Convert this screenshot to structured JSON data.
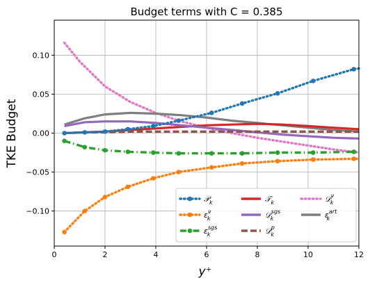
{
  "chart_data": {
    "type": "line",
    "title": "Budget terms with C = 0.385",
    "xlabel": "y⁺",
    "ylabel": "TKE Budget",
    "xlim": [
      0,
      12
    ],
    "ylim": [
      -0.145,
      0.145
    ],
    "xticks": [
      0,
      2,
      4,
      6,
      8,
      10,
      12
    ],
    "yticks": [
      -0.1,
      -0.05,
      0.0,
      0.05,
      0.1
    ],
    "grid": true,
    "legend_placement": "lower-right",
    "series": [
      {
        "name": "P_k",
        "base": "𝒫",
        "sub": "k",
        "sup": "",
        "color": "#1f77b4",
        "style": "dotted",
        "marker": true,
        "x": [
          0.4,
          1.2,
          2.0,
          2.9,
          3.9,
          4.9,
          6.2,
          7.4,
          8.8,
          10.2,
          11.8,
          12.0
        ],
        "y": [
          0.0,
          0.001,
          0.002,
          0.005,
          0.009,
          0.016,
          0.026,
          0.038,
          0.051,
          0.067,
          0.082,
          0.083
        ]
      },
      {
        "name": "eps_k^nu",
        "base": "ε",
        "sub": "k",
        "sup": "ν",
        "color": "#ff7f0e",
        "style": "dotted",
        "marker": true,
        "x": [
          0.4,
          1.2,
          2.0,
          2.9,
          3.9,
          4.9,
          6.2,
          7.4,
          8.8,
          10.2,
          11.8,
          12.0
        ],
        "y": [
          -0.127,
          -0.1,
          -0.082,
          -0.069,
          -0.058,
          -0.05,
          -0.044,
          -0.039,
          -0.036,
          -0.034,
          -0.033,
          -0.033
        ]
      },
      {
        "name": "eps_k^sgs",
        "base": "ε",
        "sub": "k",
        "sup": "sgs",
        "color": "#2ca02c",
        "style": "dashdot",
        "marker": true,
        "x": [
          0.4,
          1.2,
          2.0,
          2.9,
          3.9,
          4.9,
          6.2,
          7.4,
          8.8,
          10.2,
          11.8,
          12.0
        ],
        "y": [
          -0.01,
          -0.018,
          -0.022,
          -0.024,
          -0.025,
          -0.026,
          -0.026,
          -0.026,
          -0.025,
          -0.025,
          -0.024,
          -0.024
        ]
      },
      {
        "name": "T_k",
        "base": "𝒯",
        "sub": "k",
        "sup": "",
        "color": "#d62728",
        "style": "solid",
        "marker": false,
        "x": [
          0.4,
          1.2,
          2.0,
          3.0,
          4.0,
          5.0,
          6.0,
          7.0,
          8.0,
          9.0,
          10.0,
          11.0,
          12.0
        ],
        "y": [
          0.0,
          0.001,
          0.002,
          0.004,
          0.006,
          0.008,
          0.01,
          0.011,
          0.012,
          0.011,
          0.009,
          0.007,
          0.005
        ]
      },
      {
        "name": "D_k^sgs",
        "base": "𝒟",
        "sub": "k",
        "sup": "sgs",
        "color": "#9467bd",
        "style": "solid",
        "marker": false,
        "x": [
          0.4,
          1.2,
          2.0,
          3.0,
          4.0,
          5.0,
          6.0,
          7.0,
          8.0,
          9.0,
          10.0,
          11.0,
          12.0
        ],
        "y": [
          0.009,
          0.014,
          0.015,
          0.015,
          0.013,
          0.01,
          0.007,
          0.004,
          0.001,
          -0.002,
          -0.004,
          -0.006,
          -0.007
        ]
      },
      {
        "name": "D_k^p",
        "base": "𝒟",
        "sub": "k",
        "sup": "p",
        "color": "#8c564b",
        "style": "dashed",
        "marker": false,
        "x": [
          0.4,
          1.2,
          2.0,
          3.0,
          4.0,
          5.0,
          6.0,
          7.0,
          8.0,
          9.0,
          10.0,
          11.0,
          12.0
        ],
        "y": [
          0.0,
          0.001,
          0.001,
          0.002,
          0.002,
          0.002,
          0.002,
          0.002,
          0.002,
          0.002,
          0.002,
          0.002,
          0.002
        ]
      },
      {
        "name": "D_k^nu",
        "base": "𝒟",
        "sub": "k",
        "sup": "ν",
        "color": "#e377c2",
        "style": "dotted",
        "marker": false,
        "x": [
          0.4,
          1.0,
          2.0,
          3.0,
          4.0,
          5.0,
          6.0,
          7.0,
          8.0,
          9.0,
          10.0,
          11.0,
          12.0
        ],
        "y": [
          0.116,
          0.092,
          0.06,
          0.04,
          0.026,
          0.015,
          0.007,
          0.0,
          -0.006,
          -0.011,
          -0.016,
          -0.021,
          -0.025
        ]
      },
      {
        "name": "eps_k^art",
        "base": "ε",
        "sub": "k",
        "sup": "art",
        "color": "#7f7f7f",
        "style": "solid",
        "marker": false,
        "x": [
          0.4,
          1.2,
          2.0,
          3.0,
          4.0,
          5.0,
          6.0,
          7.0,
          8.0,
          9.0,
          10.0,
          11.0,
          12.0
        ],
        "y": [
          0.011,
          0.019,
          0.024,
          0.026,
          0.025,
          0.023,
          0.02,
          0.016,
          0.013,
          0.01,
          0.007,
          0.004,
          0.002
        ]
      }
    ]
  }
}
